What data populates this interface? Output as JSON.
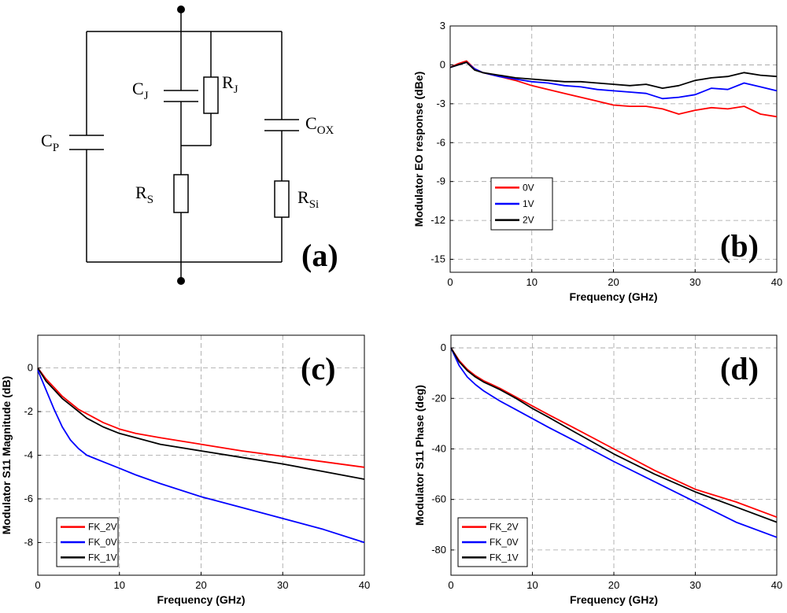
{
  "circuit": {
    "panel_tag": "(a)",
    "components": [
      {
        "id": "cp",
        "main": "C",
        "sub": "P"
      },
      {
        "id": "cj",
        "main": "C",
        "sub": "J"
      },
      {
        "id": "rj",
        "main": "R",
        "sub": "J"
      },
      {
        "id": "cox",
        "main": "C",
        "sub": "OX"
      },
      {
        "id": "rs",
        "main": "R",
        "sub": "S"
      },
      {
        "id": "rsi",
        "main": "R",
        "sub": "Si"
      }
    ]
  },
  "colors": {
    "red": "#ff0000",
    "blue": "#0000ff",
    "black": "#000000"
  },
  "chart_data": [
    {
      "panel_tag": "(b)",
      "type": "line",
      "xlabel": "Frequency (GHz)",
      "ylabel": "Modulator EO response (dBe)",
      "xlim": [
        0,
        40
      ],
      "ylim": [
        -16,
        3
      ],
      "xticks": [
        0,
        10,
        20,
        30,
        40
      ],
      "yticks": [
        3,
        0,
        -3,
        -6,
        -9,
        -12,
        -15
      ],
      "legend_position": "center-left",
      "series": [
        {
          "name": "0V",
          "color": "#ff0000",
          "x": [
            0,
            1,
            2,
            3,
            4,
            6,
            8,
            10,
            12,
            14,
            16,
            18,
            20,
            22,
            24,
            26,
            28,
            30,
            32,
            34,
            36,
            38,
            40
          ],
          "y": [
            -0.2,
            0.1,
            0.3,
            -0.3,
            -0.6,
            -0.9,
            -1.2,
            -1.6,
            -1.9,
            -2.2,
            -2.5,
            -2.8,
            -3.1,
            -3.2,
            -3.2,
            -3.4,
            -3.8,
            -3.5,
            -3.3,
            -3.4,
            -3.2,
            -3.8,
            -4.0
          ]
        },
        {
          "name": "1V",
          "color": "#0000ff",
          "x": [
            0,
            1,
            2,
            3,
            4,
            6,
            8,
            10,
            12,
            14,
            16,
            18,
            20,
            22,
            24,
            26,
            28,
            30,
            32,
            34,
            36,
            38,
            40
          ],
          "y": [
            -0.2,
            0.0,
            0.2,
            -0.3,
            -0.6,
            -0.9,
            -1.1,
            -1.3,
            -1.4,
            -1.6,
            -1.7,
            -1.9,
            -2.0,
            -2.1,
            -2.2,
            -2.6,
            -2.5,
            -2.3,
            -1.8,
            -1.9,
            -1.4,
            -1.7,
            -2.0
          ]
        },
        {
          "name": "2V",
          "color": "#000000",
          "x": [
            0,
            1,
            2,
            3,
            4,
            6,
            8,
            10,
            12,
            14,
            16,
            18,
            20,
            22,
            24,
            26,
            28,
            30,
            32,
            34,
            36,
            38,
            40
          ],
          "y": [
            -0.2,
            0.0,
            0.2,
            -0.4,
            -0.6,
            -0.8,
            -1.0,
            -1.1,
            -1.2,
            -1.3,
            -1.3,
            -1.4,
            -1.5,
            -1.6,
            -1.5,
            -1.8,
            -1.6,
            -1.2,
            -1.0,
            -0.9,
            -0.6,
            -0.8,
            -0.9
          ]
        }
      ]
    },
    {
      "panel_tag": "(c)",
      "type": "line",
      "xlabel": "Frequency (GHz)",
      "ylabel": "Modulator S11 Magnitude (dB)",
      "xlim": [
        0,
        40
      ],
      "ylim": [
        -9.5,
        1.5
      ],
      "xticks": [
        0,
        10,
        20,
        30,
        40
      ],
      "yticks": [
        0,
        -2,
        -4,
        -6,
        -8
      ],
      "legend_position": "bottom-left",
      "series": [
        {
          "name": "FK_2V",
          "color": "#ff0000",
          "x": [
            0,
            1,
            2,
            3,
            4,
            5,
            6,
            8,
            10,
            12,
            15,
            20,
            25,
            30,
            35,
            40
          ],
          "y": [
            0,
            -0.5,
            -0.9,
            -1.3,
            -1.6,
            -1.9,
            -2.1,
            -2.5,
            -2.8,
            -3.0,
            -3.2,
            -3.5,
            -3.8,
            -4.05,
            -4.3,
            -4.55
          ]
        },
        {
          "name": "FK_0V",
          "color": "#0000ff",
          "x": [
            0,
            1,
            2,
            3,
            4,
            5,
            6,
            8,
            10,
            12,
            15,
            20,
            25,
            30,
            35,
            40
          ],
          "y": [
            -0.1,
            -1.0,
            -1.9,
            -2.7,
            -3.3,
            -3.7,
            -4.0,
            -4.3,
            -4.6,
            -4.9,
            -5.3,
            -5.9,
            -6.4,
            -6.9,
            -7.4,
            -8.0
          ]
        },
        {
          "name": "FK_1V",
          "color": "#000000",
          "x": [
            0,
            1,
            2,
            3,
            4,
            5,
            6,
            8,
            10,
            12,
            15,
            20,
            25,
            30,
            35,
            40
          ],
          "y": [
            0,
            -0.6,
            -1.0,
            -1.4,
            -1.7,
            -2.0,
            -2.3,
            -2.7,
            -3.0,
            -3.2,
            -3.5,
            -3.8,
            -4.1,
            -4.4,
            -4.75,
            -5.1
          ]
        }
      ]
    },
    {
      "panel_tag": "(d)",
      "type": "line",
      "xlabel": "Frequency (GHz)",
      "ylabel": "Modulator S11 Phase (deg)",
      "xlim": [
        0,
        40
      ],
      "ylim": [
        -90,
        5
      ],
      "xticks": [
        0,
        10,
        20,
        30,
        40
      ],
      "yticks": [
        0,
        -20,
        -40,
        -60,
        -80
      ],
      "legend_position": "bottom-left",
      "series": [
        {
          "name": "FK_2V",
          "color": "#ff0000",
          "x": [
            0,
            1,
            2,
            3,
            4,
            5,
            6,
            8,
            10,
            12,
            15,
            20,
            25,
            30,
            35,
            40
          ],
          "y": [
            0,
            -5,
            -8.5,
            -11,
            -13,
            -14.5,
            -16,
            -19.5,
            -23,
            -26.5,
            -31.5,
            -40,
            -48.5,
            -56,
            -61,
            -67
          ]
        },
        {
          "name": "FK_0V",
          "color": "#0000ff",
          "x": [
            0,
            1,
            2,
            3,
            4,
            5,
            6,
            8,
            10,
            12,
            15,
            20,
            25,
            30,
            35,
            40
          ],
          "y": [
            0,
            -7,
            -11.5,
            -14.5,
            -17,
            -19,
            -21,
            -24.5,
            -28,
            -31.5,
            -36.5,
            -45,
            -53,
            -61,
            -69,
            -75
          ]
        },
        {
          "name": "FK_1V",
          "color": "#000000",
          "x": [
            0,
            1,
            2,
            3,
            4,
            5,
            6,
            8,
            10,
            12,
            15,
            20,
            25,
            30,
            35,
            40
          ],
          "y": [
            0,
            -5.5,
            -9,
            -11.5,
            -13.5,
            -15,
            -16.5,
            -20,
            -24,
            -27.5,
            -33,
            -42,
            -50,
            -57,
            -63,
            -69
          ]
        }
      ]
    }
  ]
}
